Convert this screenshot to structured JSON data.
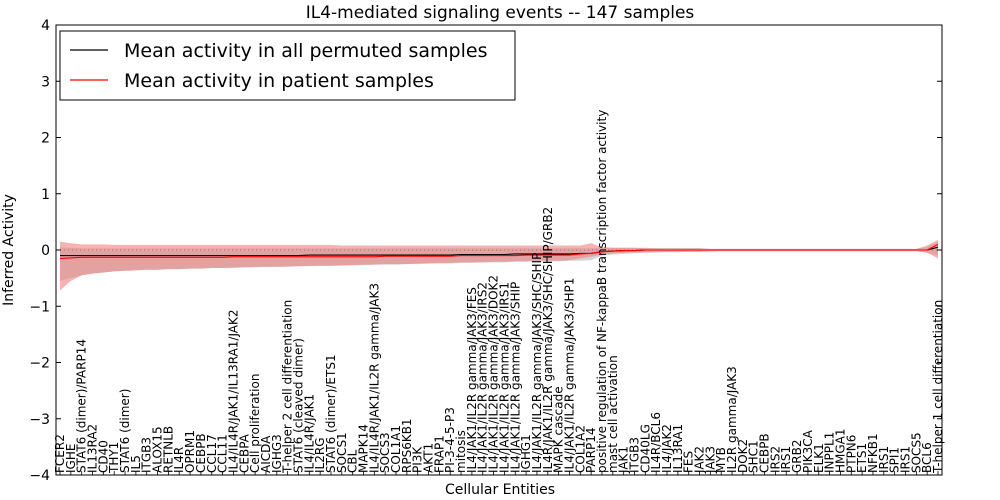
{
  "chart_data": {
    "type": "line",
    "title": "IL4-mediated signaling events -- 147 samples",
    "xlabel": "Cellular Entities",
    "ylabel": "Inferred Activity",
    "ylim": [
      -4,
      4
    ],
    "yticks": [
      4,
      3,
      2,
      1,
      0,
      -1,
      -2,
      -3,
      -4
    ],
    "ytick_labels": [
      "4",
      "3",
      "2",
      "1",
      "0",
      "−1",
      "−2",
      "−3",
      "−4"
    ],
    "grid": false,
    "legend_position": "top-left",
    "categories": [
      "FCER2",
      "IGHE",
      "STAT6 (dimer)/PARP14",
      "IL13RA2",
      "CD40",
      "THY1",
      "STAT6 (dimer)",
      "IL5",
      "ITGB3",
      "ALOX15",
      "RETNLB",
      "IL4R",
      "OPRM1",
      "CEBPB",
      "CCL17",
      "CCL11",
      "IL4/IL4R/JAK1/IL13RA1/JAK2",
      "CEBPA",
      "Cell proliferation",
      "AICDA",
      "IGHG3",
      "T-helper 2 cell differentiation",
      "STAT6 (cleaved dimer)",
      "IL4/IL4R/JAK1",
      "IL2RG",
      "STAT6 (dimer)/ETS1",
      "SOCS1",
      "CBL",
      "MAPK14",
      "IL4/IL4R/JAK1/IL2R gamma/JAK3",
      "SOCS3",
      "COL1A1",
      "RPS6KB1",
      "PI3K",
      "AKT1",
      "FRAP1",
      "PI-3-4-5-P3",
      "mitosis",
      "IL4/JAK1/IL2R gamma/JAK3/FES",
      "IL4/JAK1/IL2R gamma/JAK3/IRS2",
      "IL4/JAK1/IL2R gamma/JAK3/DOK2",
      "IL4/JAK1/IL2R gamma/JAK3/IRS1",
      "IL4/JAK1/IL2R gamma/JAK3/SHIP",
      "IGHG1",
      "IL4/JAK1/IL2R gamma/JAK3/SHC/SHIP",
      "IL4R/JAK1/IL2R gamma/JAK3/SHC/SHIP/GRB2",
      "MAPK cascade",
      "IL4/JAK1/IL2R gamma/JAK3/SHP1",
      "COL1A2",
      "PARP14",
      "positive regulation of NF-kappaB transcription factor activity",
      "mast cell activation",
      "JAK1",
      "ITGB3",
      "CD40LG",
      "IL4R/BCL6",
      "IL4/JAK2",
      "IL13RA1",
      "FES",
      "JAK2",
      "JAK3",
      "MYB",
      "IL2R gamma/JAK3",
      "DOK2",
      "SHC1",
      "CEBPB",
      "IRS2",
      "IRS1",
      "GRB2",
      "PIK3CA",
      "ELK1",
      "INPPL1",
      "HMGA1",
      "PTPN6",
      "ETS1",
      "NFKB1",
      "IRS1",
      "SPI1",
      "IRS1",
      "SOCS5",
      "BCL6",
      "T-helper 1 cell differentiation"
    ],
    "series": [
      {
        "name": "Mean activity in all permuted samples",
        "color": "#000000",
        "values": [
          -0.1,
          -0.1,
          -0.1,
          -0.1,
          -0.1,
          -0.1,
          -0.1,
          -0.1,
          -0.1,
          -0.1,
          -0.1,
          -0.1,
          -0.1,
          -0.1,
          -0.1,
          -0.1,
          -0.1,
          -0.1,
          -0.1,
          -0.1,
          -0.1,
          -0.1,
          -0.1,
          -0.09,
          -0.09,
          -0.09,
          -0.09,
          -0.09,
          -0.09,
          -0.09,
          -0.09,
          -0.09,
          -0.09,
          -0.09,
          -0.09,
          -0.09,
          -0.09,
          -0.08,
          -0.08,
          -0.08,
          -0.08,
          -0.08,
          -0.07,
          -0.07,
          -0.07,
          -0.07,
          -0.07,
          -0.07,
          -0.06,
          -0.06,
          -0.03,
          -0.02,
          -0.01,
          -0.01,
          0.0,
          0.0,
          0.0,
          0.0,
          0.0,
          0.0,
          0.0,
          0.0,
          0.0,
          0.0,
          0.0,
          0.0,
          0.0,
          0.0,
          0.0,
          0.0,
          0.0,
          0.0,
          0.0,
          0.0,
          0.0,
          0.0,
          0.0,
          0.0,
          0.0,
          0.0,
          0.0,
          0.05
        ],
        "band_lower": [
          -0.55,
          -0.5,
          -0.45,
          -0.42,
          -0.4,
          -0.38,
          -0.37,
          -0.36,
          -0.35,
          -0.35,
          -0.34,
          -0.34,
          -0.33,
          -0.33,
          -0.32,
          -0.32,
          -0.32,
          -0.31,
          -0.31,
          -0.3,
          -0.3,
          -0.3,
          -0.29,
          -0.29,
          -0.28,
          -0.28,
          -0.28,
          -0.27,
          -0.27,
          -0.26,
          -0.26,
          -0.26,
          -0.25,
          -0.25,
          -0.24,
          -0.24,
          -0.24,
          -0.23,
          -0.23,
          -0.22,
          -0.22,
          -0.22,
          -0.21,
          -0.21,
          -0.2,
          -0.2,
          -0.2,
          -0.19,
          -0.19,
          -0.18,
          -0.1,
          -0.08,
          -0.07,
          -0.06,
          -0.05,
          -0.05,
          -0.04,
          -0.04,
          -0.03,
          -0.03,
          -0.03,
          -0.02,
          -0.02,
          -0.02,
          -0.02,
          -0.02,
          -0.02,
          -0.02,
          -0.02,
          -0.02,
          -0.02,
          -0.02,
          -0.02,
          -0.02,
          -0.02,
          -0.02,
          -0.02,
          -0.02,
          -0.02,
          -0.02,
          -0.05,
          -0.1
        ],
        "band_upper": [
          0.05,
          0.04,
          0.03,
          0.03,
          0.03,
          0.03,
          0.03,
          0.03,
          0.03,
          0.03,
          0.03,
          0.03,
          0.03,
          0.03,
          0.03,
          0.03,
          0.03,
          0.03,
          0.03,
          0.03,
          0.03,
          0.03,
          0.03,
          0.03,
          0.03,
          0.03,
          0.03,
          0.03,
          0.03,
          0.03,
          0.03,
          0.03,
          0.03,
          0.03,
          0.03,
          0.03,
          0.03,
          0.03,
          0.03,
          0.03,
          0.03,
          0.03,
          0.03,
          0.03,
          0.03,
          0.03,
          0.03,
          0.03,
          0.03,
          0.03,
          0.04,
          0.04,
          0.04,
          0.04,
          0.03,
          0.03,
          0.03,
          0.03,
          0.03,
          0.03,
          0.02,
          0.02,
          0.02,
          0.02,
          0.02,
          0.02,
          0.02,
          0.02,
          0.02,
          0.02,
          0.02,
          0.02,
          0.02,
          0.02,
          0.02,
          0.02,
          0.02,
          0.02,
          0.02,
          0.02,
          0.05,
          0.15
        ]
      },
      {
        "name": "Mean activity in patient samples",
        "color": "#ff0000",
        "values": [
          -0.15,
          -0.14,
          -0.13,
          -0.13,
          -0.13,
          -0.13,
          -0.13,
          -0.13,
          -0.13,
          -0.13,
          -0.13,
          -0.13,
          -0.13,
          -0.13,
          -0.13,
          -0.13,
          -0.12,
          -0.12,
          -0.12,
          -0.12,
          -0.12,
          -0.12,
          -0.12,
          -0.12,
          -0.12,
          -0.12,
          -0.12,
          -0.12,
          -0.12,
          -0.12,
          -0.11,
          -0.11,
          -0.11,
          -0.11,
          -0.11,
          -0.11,
          -0.11,
          -0.1,
          -0.1,
          -0.1,
          -0.1,
          -0.1,
          -0.1,
          -0.09,
          -0.09,
          -0.09,
          -0.09,
          -0.09,
          -0.07,
          -0.06,
          -0.03,
          -0.02,
          -0.01,
          -0.01,
          0.0,
          0.0,
          0.0,
          0.0,
          0.0,
          0.0,
          0.0,
          0.0,
          0.0,
          0.0,
          0.0,
          0.0,
          0.0,
          0.0,
          0.0,
          0.0,
          0.0,
          0.0,
          0.0,
          0.0,
          0.0,
          0.0,
          0.0,
          0.0,
          0.0,
          0.0,
          0.0,
          0.1
        ],
        "band_lower": [
          -0.72,
          -0.55,
          -0.45,
          -0.42,
          -0.4,
          -0.38,
          -0.37,
          -0.36,
          -0.35,
          -0.35,
          -0.34,
          -0.34,
          -0.33,
          -0.33,
          -0.32,
          -0.32,
          -0.31,
          -0.31,
          -0.3,
          -0.3,
          -0.3,
          -0.29,
          -0.29,
          -0.28,
          -0.28,
          -0.28,
          -0.27,
          -0.27,
          -0.26,
          -0.26,
          -0.25,
          -0.25,
          -0.25,
          -0.24,
          -0.24,
          -0.23,
          -0.23,
          -0.22,
          -0.22,
          -0.22,
          -0.21,
          -0.21,
          -0.2,
          -0.2,
          -0.19,
          -0.19,
          -0.19,
          -0.18,
          -0.15,
          -0.12,
          -0.08,
          -0.06,
          -0.05,
          -0.04,
          -0.04,
          -0.03,
          -0.03,
          -0.03,
          -0.03,
          -0.03,
          -0.02,
          -0.02,
          -0.02,
          -0.02,
          -0.02,
          -0.02,
          -0.02,
          -0.02,
          -0.02,
          -0.02,
          -0.02,
          -0.02,
          -0.02,
          -0.02,
          -0.02,
          -0.02,
          -0.02,
          -0.02,
          -0.02,
          -0.02,
          -0.05,
          -0.15
        ],
        "band_upper": [
          0.15,
          0.12,
          0.1,
          0.1,
          0.1,
          0.09,
          0.09,
          0.09,
          0.09,
          0.09,
          0.09,
          0.09,
          0.09,
          0.09,
          0.09,
          0.09,
          0.09,
          0.09,
          0.09,
          0.09,
          0.09,
          0.09,
          0.09,
          0.09,
          0.09,
          0.09,
          0.08,
          0.08,
          0.08,
          0.08,
          0.08,
          0.08,
          0.08,
          0.08,
          0.08,
          0.08,
          0.08,
          0.08,
          0.08,
          0.08,
          0.08,
          0.08,
          0.08,
          0.08,
          0.08,
          0.08,
          0.08,
          0.08,
          0.08,
          0.12,
          0.05,
          0.04,
          0.04,
          0.04,
          0.04,
          0.03,
          0.03,
          0.03,
          0.03,
          0.03,
          0.02,
          0.02,
          0.02,
          0.02,
          0.02,
          0.02,
          0.02,
          0.02,
          0.02,
          0.02,
          0.02,
          0.02,
          0.02,
          0.02,
          0.02,
          0.02,
          0.02,
          0.02,
          0.02,
          0.02,
          0.08,
          0.18
        ]
      }
    ],
    "colors": {
      "permuted_band": "#c8c8c8",
      "patient_band": "#f08080",
      "zero_line": "#808080"
    }
  }
}
